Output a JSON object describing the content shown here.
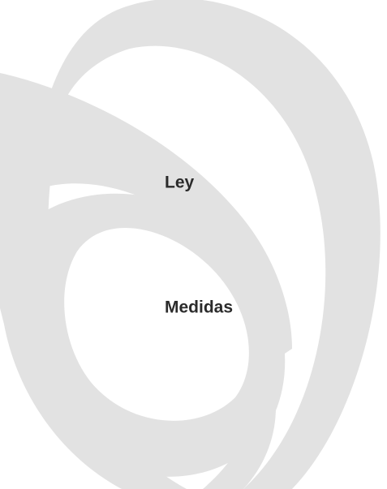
{
  "labels": [
    "Ley",
    "Medidas"
  ]
}
